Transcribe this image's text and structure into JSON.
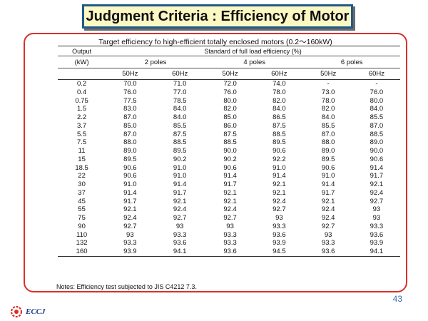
{
  "page": {
    "title": "Judgment Criteria : Efficiency of Motor",
    "page_number": "43",
    "logo_text": "ECCJ",
    "note": "Notes: Efficiency test subjected to JIS C4212 7.3."
  },
  "table": {
    "title": "Target efficiency fo high-efficient totally enclosed motors (0.2～160kW)",
    "output_label": "Output",
    "kw_label": "(kW)",
    "standard_label": "Standard of full load efficiency (%)",
    "pole_groups": [
      "2 poles",
      "4 poles",
      "6 poles"
    ],
    "freqs": [
      "50Hz",
      "60Hz",
      "50Hz",
      "60Hz",
      "50Hz",
      "60Hz"
    ],
    "rows": [
      [
        "0.2",
        "70.0",
        "71.0",
        "72.0",
        "74.0",
        "-",
        "-"
      ],
      [
        "0.4",
        "76.0",
        "77.0",
        "76.0",
        "78.0",
        "73.0",
        "76.0"
      ],
      [
        "0.75",
        "77.5",
        "78.5",
        "80.0",
        "82.0",
        "78.0",
        "80.0"
      ],
      [
        "1.5",
        "83.0",
        "84.0",
        "82.0",
        "84.0",
        "82.0",
        "84.0"
      ],
      [
        "2.2",
        "87.0",
        "84.0",
        "85.0",
        "86.5",
        "84.0",
        "85.5"
      ],
      [
        "3.7",
        "85.0",
        "85.5",
        "86.0",
        "87.5",
        "85.5",
        "87.0"
      ],
      [
        "5.5",
        "87.0",
        "87.5",
        "87.5",
        "88.5",
        "87.0",
        "88.5"
      ],
      [
        "7.5",
        "88.0",
        "88.5",
        "88.5",
        "89.5",
        "88.0",
        "89.0"
      ],
      [
        "11",
        "89.0",
        "89.5",
        "90.0",
        "90.6",
        "89.0",
        "90.0"
      ],
      [
        "15",
        "89.5",
        "90.2",
        "90.2",
        "92.2",
        "89.5",
        "90.6"
      ],
      [
        "18.5",
        "90.6",
        "91.0",
        "90.6",
        "91.0",
        "90.6",
        "91.4"
      ],
      [
        "22",
        "90.6",
        "91.0",
        "91.4",
        "91.4",
        "91.0",
        "91.7"
      ],
      [
        "30",
        "91.0",
        "91.4",
        "91.7",
        "92.1",
        "91.4",
        "92.1"
      ],
      [
        "37",
        "91.4",
        "91.7",
        "92.1",
        "92.1",
        "91.7",
        "92.4"
      ],
      [
        "45",
        "91.7",
        "92.1",
        "92.1",
        "92.4",
        "92.1",
        "92.7"
      ],
      [
        "55",
        "92.1",
        "92.4",
        "92.4",
        "92.7",
        "92.4",
        "93"
      ],
      [
        "75",
        "92.4",
        "92.7",
        "92.7",
        "93",
        "92.4",
        "93"
      ],
      [
        "90",
        "92.7",
        "93",
        "93",
        "93.3",
        "92.7",
        "93.3"
      ],
      [
        "110",
        "93",
        "93.3",
        "93.3",
        "93.6",
        "93",
        "93.6"
      ],
      [
        "132",
        "93.3",
        "93.6",
        "93.3",
        "93.9",
        "93.3",
        "93.9"
      ],
      [
        "160",
        "93.9",
        "94.1",
        "93.6",
        "94.5",
        "93.6",
        "94.1"
      ]
    ]
  },
  "colors": {
    "title_bg": "#fbf8c4",
    "title_border": "#1f5a8a",
    "panel_border": "#d9302c",
    "page_number": "#3a6ea8"
  }
}
